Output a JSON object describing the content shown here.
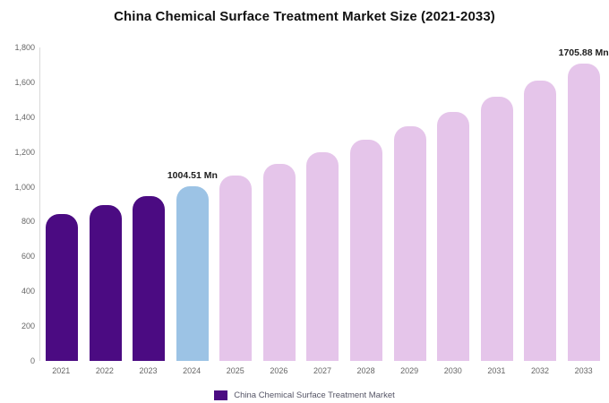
{
  "chart_data": {
    "type": "bar",
    "title": "China Chemical Surface Treatment Market Size (2021-2033)",
    "unit": "Mn",
    "categories": [
      "2021",
      "2022",
      "2023",
      "2024",
      "2025",
      "2026",
      "2027",
      "2028",
      "2029",
      "2030",
      "2031",
      "2032",
      "2033"
    ],
    "values": [
      842,
      894,
      948,
      1004.51,
      1065,
      1130,
      1198,
      1271,
      1348,
      1430,
      1516,
      1608,
      1705.88
    ],
    "bar_color_keys": [
      "historical",
      "historical",
      "historical",
      "current",
      "forecast",
      "forecast",
      "forecast",
      "forecast",
      "forecast",
      "forecast",
      "forecast",
      "forecast",
      "forecast"
    ],
    "colors": {
      "historical": "#4B0B82",
      "current": "#9CC3E5",
      "forecast": "#E5C5EA"
    },
    "annotations": [
      {
        "category": "2024",
        "text": "1004.51 Mn"
      },
      {
        "category": "2033",
        "text": "1705.88 Mn"
      }
    ],
    "y_axis": {
      "min": 0,
      "max": 1800,
      "tick_step": 200,
      "tick_labels": [
        "0",
        "200",
        "400",
        "600",
        "800",
        "1,000",
        "1,200",
        "1,400",
        "1,600",
        "1,800"
      ]
    },
    "grid": false,
    "legend_position": "bottom",
    "legend": [
      {
        "label": "China Chemical Surface Treatment Market",
        "color": "#4B0B82"
      }
    ]
  }
}
